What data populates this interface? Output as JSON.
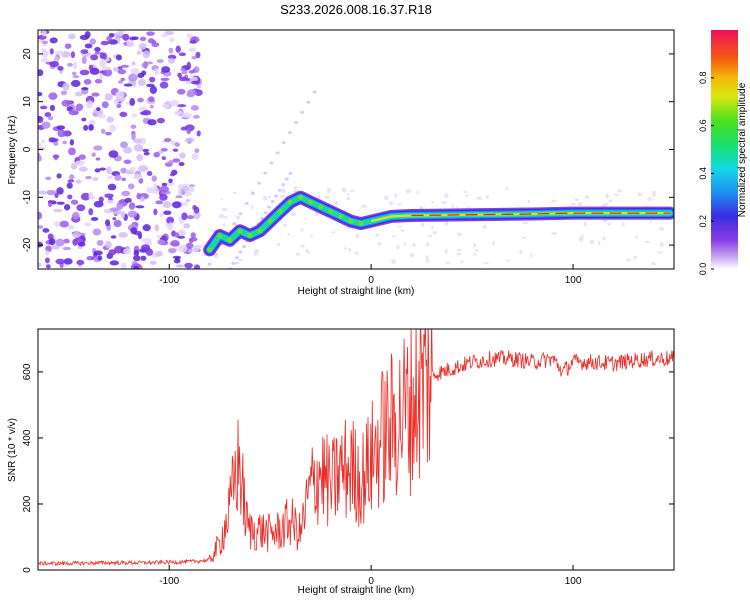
{
  "page_title": "S233.2026.008.16.37.R18",
  "chart_data": [
    {
      "type": "heatmap",
      "title": "S233.2026.008.16.37.R18",
      "xlabel": "Height of straight line (km)",
      "ylabel": "Frequency (Hz)",
      "xlim": [
        -165,
        150
      ],
      "ylim": [
        -25,
        25
      ],
      "x_ticks": [
        -100,
        0,
        100
      ],
      "y_ticks": [
        -20,
        -10,
        0,
        10,
        20
      ],
      "colorbar": {
        "label": "Normalized spectral amplitude",
        "range": [
          0.0,
          1.0
        ],
        "ticks": [
          0.0,
          0.2,
          0.4,
          0.6,
          0.8
        ]
      },
      "ridge": {
        "x": [
          -80,
          -75,
          -70,
          -65,
          -60,
          -55,
          -50,
          -45,
          -40,
          -35,
          -30,
          -25,
          -20,
          -15,
          -10,
          -5,
          0,
          10,
          20,
          40,
          60,
          80,
          100,
          120,
          148
        ],
        "y": [
          -21,
          -18,
          -19,
          -17,
          -18,
          -17,
          -15,
          -13,
          -11,
          -10,
          -11,
          -12,
          -13,
          -14,
          -15,
          -15.5,
          -15,
          -14,
          -13.8,
          -13.7,
          -13.6,
          -13.5,
          -13.3,
          -13.3,
          -13.3
        ]
      }
    },
    {
      "type": "line",
      "title": "",
      "xlabel": "Height of straight line (km)",
      "ylabel": "SNR (10 * v/v)",
      "xlim": [
        -165,
        150
      ],
      "ylim": [
        0,
        730
      ],
      "x_ticks": [
        -100,
        0,
        100
      ],
      "y_ticks": [
        0,
        200,
        400,
        600
      ],
      "series": [
        {
          "name": "SNR",
          "color": "#ee2a24",
          "x": [
            -165,
            -150,
            -130,
            -110,
            -90,
            -80,
            -75,
            -70,
            -67,
            -65,
            -62,
            -60,
            -55,
            -50,
            -45,
            -40,
            -35,
            -30,
            -25,
            -20,
            -15,
            -10,
            -5,
            0,
            5,
            10,
            15,
            20,
            25,
            30,
            40,
            50,
            60,
            70,
            80,
            90,
            95,
            100,
            110,
            120,
            130,
            140,
            150
          ],
          "y": [
            20,
            20,
            22,
            22,
            25,
            30,
            80,
            180,
            300,
            320,
            150,
            120,
            120,
            110,
            120,
            150,
            110,
            250,
            300,
            250,
            300,
            310,
            270,
            330,
            400,
            430,
            470,
            500,
            560,
            590,
            610,
            630,
            640,
            640,
            630,
            640,
            600,
            630,
            630,
            625,
            635,
            640,
            640
          ]
        }
      ]
    }
  ]
}
